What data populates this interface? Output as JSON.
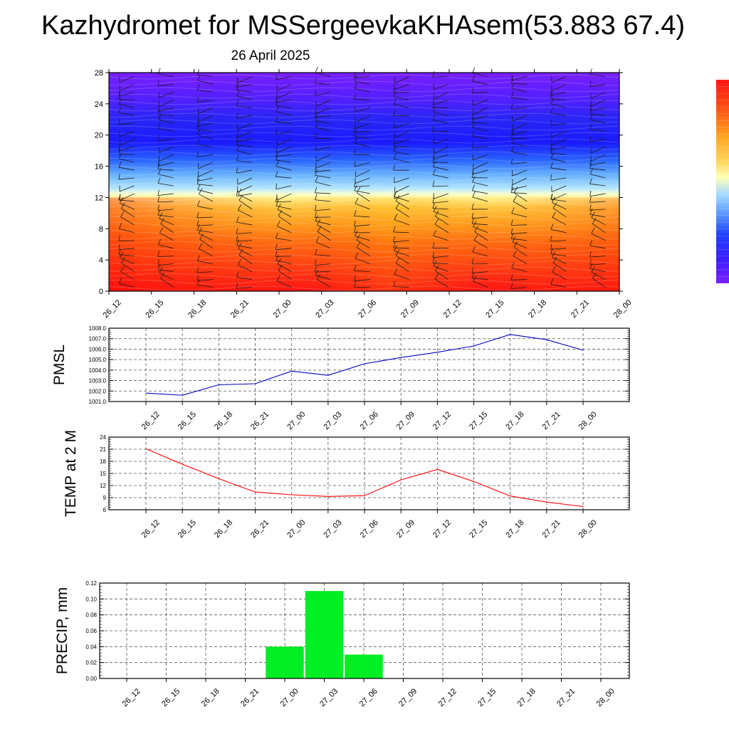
{
  "header": {
    "title": "Kazhydromet for MSSergeevkaKHAsem(53.883 67.4)",
    "subtitle": "26 April 2025"
  },
  "time_labels": [
    "26_12",
    "26_15",
    "26_18",
    "26_21",
    "27_00",
    "27_03",
    "27_06",
    "27_09",
    "27_12",
    "27_15",
    "27_18",
    "27_21",
    "28_00"
  ],
  "chart_data": [
    {
      "id": "height-time-section",
      "type": "heatmap",
      "x": [
        "26_12",
        "26_15",
        "26_18",
        "26_21",
        "27_00",
        "27_03",
        "27_06",
        "27_09",
        "27_12",
        "27_15",
        "27_18",
        "27_21",
        "28_00"
      ],
      "yticks": [
        0,
        4,
        8,
        12,
        16,
        20,
        24,
        28
      ],
      "ylim": [
        0,
        28
      ],
      "colorbar": [
        "#7a1fff",
        "#3b1fff",
        "#1a10ff",
        "#2040ff",
        "#3a7aff",
        "#6aa8ff",
        "#a8dcff",
        "#ffffb4",
        "#ffd35a",
        "#ffa51e",
        "#ff7514",
        "#ff3c14",
        "#ff1414"
      ]
    },
    {
      "id": "pmsl",
      "type": "line",
      "x": [
        "26_12",
        "26_15",
        "26_18",
        "26_21",
        "27_00",
        "27_03",
        "27_06",
        "27_09",
        "27_12",
        "27_15",
        "27_18",
        "27_21",
        "28_00"
      ],
      "values": [
        1001.8,
        1001.6,
        1002.6,
        1002.7,
        1003.9,
        1003.5,
        1004.6,
        1005.2,
        1005.7,
        1006.3,
        1007.4,
        1006.9,
        1005.9
      ],
      "ylabel": "PMSL",
      "yticks": [
        "1001.0",
        "1002.0",
        "1003.0",
        "1004.0",
        "1005.0",
        "1006.0",
        "1007.0",
        "1008.0"
      ],
      "ylim": [
        1001,
        1008
      ],
      "color": "#0000cc"
    },
    {
      "id": "temp",
      "type": "line",
      "x": [
        "26_12",
        "26_15",
        "26_18",
        "26_21",
        "27_00",
        "27_03",
        "27_06",
        "27_09",
        "27_12",
        "27_15",
        "27_18",
        "27_21",
        "28_00"
      ],
      "values": [
        21.1,
        17.3,
        13.7,
        10.4,
        9.7,
        9.3,
        9.5,
        13.4,
        16.0,
        13.0,
        9.4,
        7.9,
        6.8
      ],
      "ylabel": "TEMP at 2 M",
      "yticks": [
        "6",
        "9",
        "12",
        "15",
        "18",
        "21",
        "24"
      ],
      "ylim": [
        6,
        24
      ],
      "color": "#ff0000"
    },
    {
      "id": "precip",
      "type": "bar",
      "x": [
        "26_12",
        "26_15",
        "26_18",
        "26_21",
        "27_00",
        "27_03",
        "27_06",
        "27_09",
        "27_12",
        "27_15",
        "27_18",
        "27_21",
        "28_00"
      ],
      "values": [
        0,
        0,
        0,
        0,
        0.04,
        0.11,
        0.03,
        0,
        0,
        0,
        0,
        0,
        0
      ],
      "ylabel": "PRECIP, mm",
      "yticks": [
        "0.00",
        "0.02",
        "0.04",
        "0.06",
        "0.08",
        "0.10",
        "0.12"
      ],
      "ylim": [
        0,
        0.12
      ],
      "color": "#00ee22"
    }
  ]
}
